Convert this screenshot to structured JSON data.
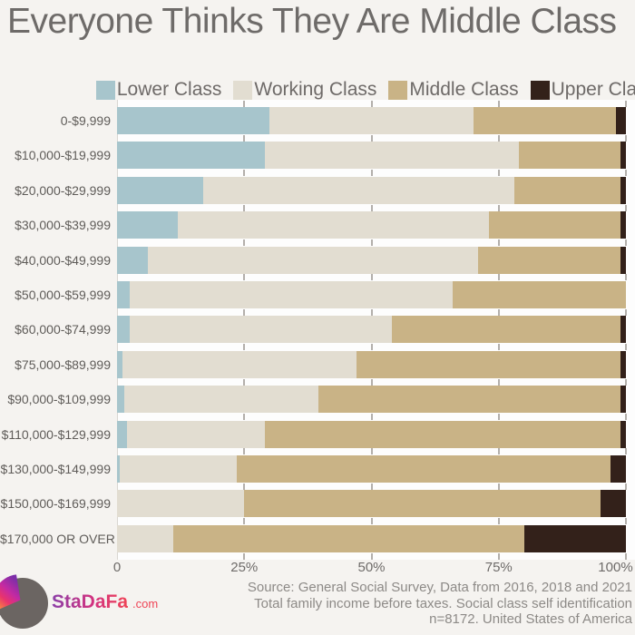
{
  "title": "Everyone Thinks They Are Middle Class",
  "chart_data": {
    "type": "bar",
    "orientation": "horizontal",
    "stacked": true,
    "unit": "%",
    "title": "Everyone Thinks They Are Middle Class",
    "categories": [
      "0-$9,999",
      "$10,000-$19,999",
      "$20,000-$29,999",
      "$30,000-$39,999",
      "$40,000-$49,999",
      "$50,000-$59,999",
      "$60,000-$74,999",
      "$75,000-$89,999",
      "$90,000-$109,999",
      "$110,000-$129,999",
      "$130,000-$149,999",
      "$150,000-$169,999",
      "$170,000 OR OVER"
    ],
    "series": [
      {
        "name": "Lower Class",
        "color": "#a7c5cc",
        "values": [
          30,
          29,
          17,
          12,
          6,
          2.5,
          2.5,
          1,
          1.5,
          2,
          0.5,
          0,
          0
        ]
      },
      {
        "name": "Working Class",
        "color": "#e2ddd1",
        "values": [
          40,
          50,
          61,
          61,
          65,
          63.5,
          51.5,
          46,
          38,
          27,
          23,
          25,
          11
        ]
      },
      {
        "name": "Middle Class",
        "color": "#c9b386",
        "values": [
          28,
          20,
          21,
          26,
          28,
          34,
          45,
          52,
          59.5,
          70,
          73.5,
          70,
          69
        ]
      },
      {
        "name": "Upper Class",
        "color": "#33211a",
        "values": [
          2,
          1,
          1,
          1,
          1,
          0,
          1,
          1,
          1,
          1,
          3,
          5,
          20
        ]
      }
    ],
    "xlim": [
      0,
      100
    ],
    "x_ticks": [
      {
        "label": "0",
        "value": 0
      },
      {
        "label": "25%",
        "value": 25
      },
      {
        "label": "50%",
        "value": 50
      },
      {
        "label": "75%",
        "value": 75
      },
      {
        "label": "100%",
        "value": 100
      }
    ],
    "legend_position": "top",
    "grid": "tick-dashes-in-gaps-between-bars"
  },
  "footer": {
    "source_lines": [
      "Source: General Social Survey, Data from 2016, 2018 and 2021",
      "Total family income before taxes. Social class self identification",
      "n=8172. United States of America"
    ],
    "logo": {
      "name": "StaDaFa",
      "suffix": ".com"
    }
  },
  "colors": {
    "background": "#f5f3f0",
    "plot_background": "#fdfdfd",
    "title_text": "#6e6b69",
    "category_text": "#5f5c59",
    "axis_text": "#6e6b69",
    "footer_text": "#8d8a87",
    "tick": "#b3afab",
    "axis_line": "#d9d6d2",
    "logo_gray": "#6b6562"
  }
}
